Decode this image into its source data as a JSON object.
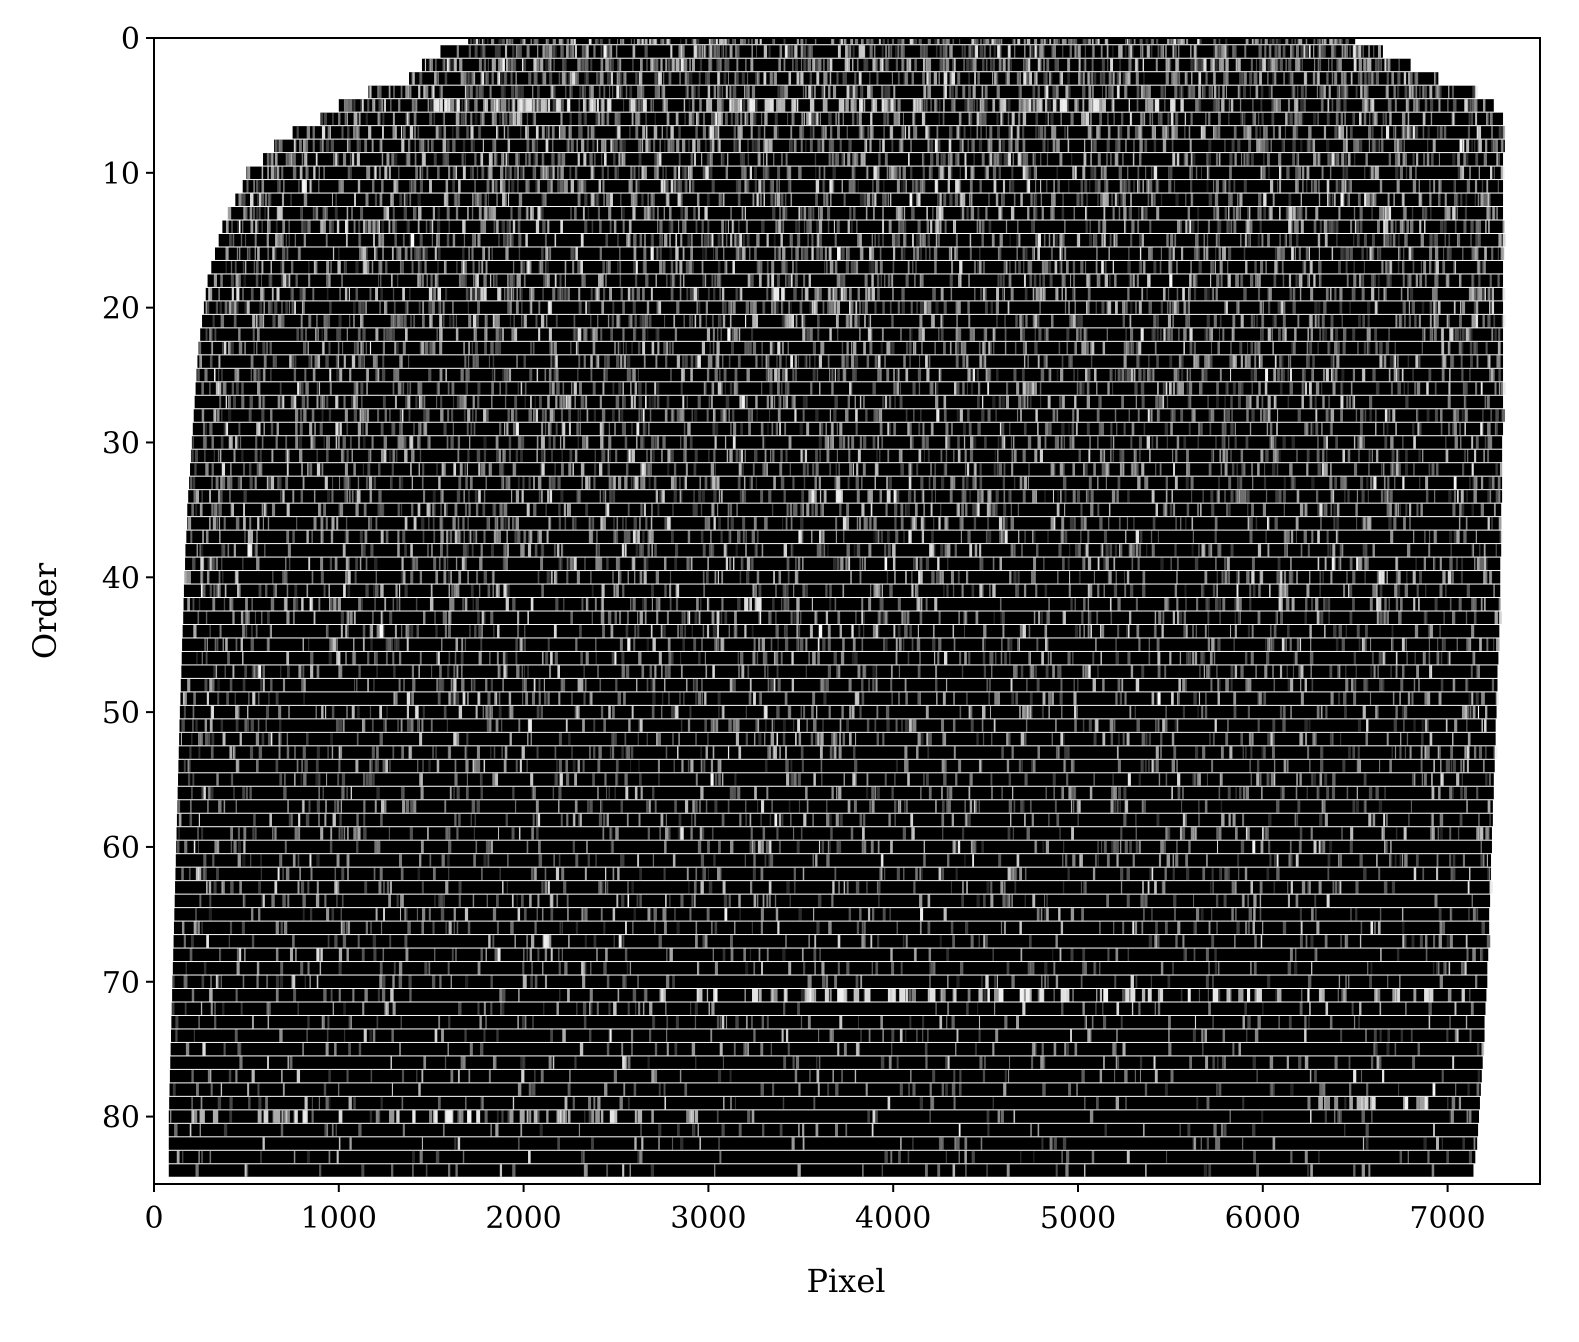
{
  "chart_data": {
    "type": "heatmap",
    "title": "",
    "xlabel": "Pixel",
    "ylabel": "Order",
    "xlim": [
      0,
      7500
    ],
    "ylim": [
      85,
      0
    ],
    "x_ticks": [
      0,
      1000,
      2000,
      3000,
      4000,
      5000,
      6000,
      7000
    ],
    "y_ticks": [
      0,
      10,
      20,
      30,
      40,
      50,
      60,
      70,
      80
    ],
    "colormap": "gray",
    "grid": false,
    "legend": "none",
    "n_orders": 85,
    "order_pixel_extent": [
      [
        0,
        1700,
        6500
      ],
      [
        1,
        1550,
        6650
      ],
      [
        2,
        1450,
        6800
      ],
      [
        3,
        1380,
        6950
      ],
      [
        4,
        1160,
        7150
      ],
      [
        5,
        1000,
        7250
      ],
      [
        6,
        900,
        7300
      ],
      [
        7,
        750,
        7310
      ],
      [
        8,
        650,
        7310
      ],
      [
        9,
        590,
        7300
      ],
      [
        10,
        500,
        7300
      ],
      [
        11,
        480,
        7300
      ],
      [
        12,
        440,
        7300
      ],
      [
        13,
        400,
        7300
      ],
      [
        14,
        370,
        7300
      ],
      [
        15,
        350,
        7300
      ],
      [
        16,
        330,
        7300
      ],
      [
        17,
        310,
        7300
      ],
      [
        18,
        290,
        7300
      ],
      [
        19,
        280,
        7300
      ],
      [
        20,
        270,
        7300
      ],
      [
        21,
        260,
        7300
      ],
      [
        22,
        250,
        7300
      ],
      [
        23,
        240,
        7300
      ],
      [
        24,
        235,
        7300
      ],
      [
        25,
        230,
        7300
      ],
      [
        26,
        225,
        7300
      ],
      [
        27,
        220,
        7300
      ],
      [
        28,
        215,
        7300
      ],
      [
        29,
        210,
        7300
      ],
      [
        30,
        205,
        7295
      ],
      [
        31,
        200,
        7295
      ],
      [
        32,
        195,
        7295
      ],
      [
        33,
        190,
        7295
      ],
      [
        34,
        185,
        7295
      ],
      [
        35,
        180,
        7290
      ],
      [
        36,
        180,
        7290
      ],
      [
        37,
        175,
        7290
      ],
      [
        38,
        170,
        7290
      ],
      [
        39,
        168,
        7285
      ],
      [
        40,
        165,
        7285
      ],
      [
        41,
        162,
        7285
      ],
      [
        42,
        160,
        7280
      ],
      [
        43,
        158,
        7280
      ],
      [
        44,
        155,
        7280
      ],
      [
        45,
        152,
        7275
      ],
      [
        46,
        150,
        7275
      ],
      [
        47,
        148,
        7270
      ],
      [
        48,
        145,
        7270
      ],
      [
        49,
        143,
        7265
      ],
      [
        50,
        140,
        7265
      ],
      [
        51,
        138,
        7260
      ],
      [
        52,
        136,
        7260
      ],
      [
        53,
        134,
        7255
      ],
      [
        54,
        132,
        7255
      ],
      [
        55,
        130,
        7250
      ],
      [
        56,
        128,
        7250
      ],
      [
        57,
        126,
        7245
      ],
      [
        58,
        124,
        7245
      ],
      [
        59,
        122,
        7240
      ],
      [
        60,
        120,
        7240
      ],
      [
        61,
        118,
        7235
      ],
      [
        62,
        116,
        7235
      ],
      [
        63,
        114,
        7230
      ],
      [
        64,
        112,
        7230
      ],
      [
        65,
        110,
        7225
      ],
      [
        66,
        108,
        7225
      ],
      [
        67,
        106,
        7220
      ],
      [
        68,
        104,
        7220
      ],
      [
        69,
        102,
        7215
      ],
      [
        70,
        100,
        7215
      ],
      [
        71,
        98,
        7210
      ],
      [
        72,
        96,
        7205
      ],
      [
        73,
        94,
        7200
      ],
      [
        74,
        92,
        7200
      ],
      [
        75,
        90,
        7195
      ],
      [
        76,
        88,
        7190
      ],
      [
        77,
        86,
        7185
      ],
      [
        78,
        84,
        7180
      ],
      [
        79,
        82,
        7175
      ],
      [
        80,
        80,
        7170
      ],
      [
        81,
        80,
        7165
      ],
      [
        82,
        80,
        7160
      ],
      [
        83,
        80,
        7150
      ],
      [
        84,
        80,
        7140
      ]
    ],
    "bright_features": [
      {
        "order": 5,
        "pixel_range": [
          1500,
          5500
        ]
      },
      {
        "order": 19,
        "pixel_range": [
          3300,
          3800
        ]
      },
      {
        "order": 34,
        "pixel_range": [
          3500,
          4000
        ]
      },
      {
        "order": 42,
        "pixel_range": [
          3100,
          3300
        ]
      },
      {
        "order": 67,
        "pixel_range": [
          1950,
          2150
        ]
      },
      {
        "order": 71,
        "pixel_range": [
          2700,
          7100
        ]
      },
      {
        "order": 79,
        "pixel_range": [
          6250,
          7100
        ]
      },
      {
        "order": 80,
        "pixel_range": [
          200,
          2900
        ]
      }
    ]
  }
}
